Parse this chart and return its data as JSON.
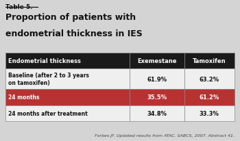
{
  "table_label": "Table 5.",
  "title_line1": "Proportion of patients with",
  "title_line2": "endometrial thickness in IES",
  "col_headers": [
    "Endometrial thickness",
    "Exemestane",
    "Tamoxifen"
  ],
  "rows": [
    {
      "label": "Baseline (after 2 to 3 years\non tamoxifen)",
      "exemestane": "61.9%",
      "tamoxifen": "63.2%",
      "highlight": false
    },
    {
      "label": "24 months",
      "exemestane": "35.5%",
      "tamoxifen": "61.2%",
      "highlight": true
    },
    {
      "label": "24 months after treatment",
      "exemestane": "34.8%",
      "tamoxifen": "33.3%",
      "highlight": false
    }
  ],
  "footnote": "Forbes JF. Updated results from ATAC. SABCS, 2007. Abstract 41.",
  "header_bg": "#1a1a1a",
  "header_fg": "#ffffff",
  "highlight_bg": "#b83232",
  "highlight_fg": "#ffffff",
  "normal_bg": "#efefef",
  "normal_fg": "#111111",
  "border_color": "#888888",
  "outer_bg": "#d4d4d4",
  "title_color": "#111111",
  "footnote_color": "#444444"
}
